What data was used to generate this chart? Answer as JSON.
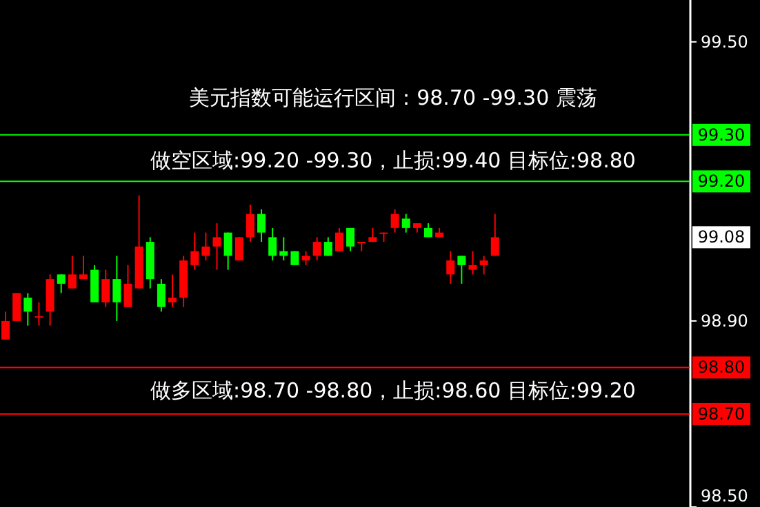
{
  "chart_data": {
    "type": "candlestick",
    "title": "美元指数可能运行区间：98.70 -99.30 震荡",
    "categories": [
      null,
      null,
      null,
      null,
      null,
      null,
      null,
      null,
      null,
      null,
      null,
      null,
      null,
      null,
      null,
      null,
      null,
      null,
      null,
      null,
      null,
      null,
      null,
      null,
      null,
      null,
      null,
      null,
      null,
      null,
      null,
      null,
      null,
      null,
      null,
      null,
      null,
      null,
      null,
      null,
      null,
      null,
      null,
      null,
      null,
      null,
      null,
      null,
      null,
      null,
      null,
      null,
      null,
      null,
      null,
      null,
      null,
      null,
      null,
      null,
      null,
      null
    ],
    "ohlc": [
      [
        98.86,
        98.92,
        98.86,
        98.9
      ],
      [
        98.9,
        98.96,
        98.9,
        98.96
      ],
      [
        98.95,
        98.96,
        98.89,
        98.92
      ],
      [
        98.91,
        98.94,
        98.89,
        98.91
      ],
      [
        98.92,
        99.0,
        98.89,
        98.99
      ],
      [
        99.0,
        99.0,
        98.96,
        98.98
      ],
      [
        98.97,
        99.04,
        98.97,
        99.0
      ],
      [
        98.99,
        99.04,
        98.99,
        99.0
      ],
      [
        99.01,
        99.02,
        98.94,
        98.94
      ],
      [
        98.94,
        99.01,
        98.93,
        98.99
      ],
      [
        98.99,
        99.04,
        98.9,
        98.94
      ],
      [
        98.93,
        99.02,
        98.93,
        98.98
      ],
      [
        98.97,
        99.17,
        98.97,
        99.06
      ],
      [
        99.07,
        99.08,
        98.97,
        98.99
      ],
      [
        98.98,
        98.99,
        98.92,
        98.93
      ],
      [
        98.94,
        99.0,
        98.93,
        98.95
      ],
      [
        98.95,
        99.04,
        98.93,
        99.03
      ],
      [
        99.02,
        99.09,
        99.01,
        99.05
      ],
      [
        99.04,
        99.09,
        99.03,
        99.06
      ],
      [
        99.06,
        99.11,
        99.01,
        99.08
      ],
      [
        99.09,
        99.09,
        99.01,
        99.04
      ],
      [
        99.03,
        99.08,
        99.03,
        99.08
      ],
      [
        99.08,
        99.15,
        99.07,
        99.13
      ],
      [
        99.13,
        99.14,
        99.07,
        99.09
      ],
      [
        99.08,
        99.1,
        99.03,
        99.04
      ],
      [
        99.05,
        99.08,
        99.03,
        99.04
      ],
      [
        99.05,
        99.05,
        99.02,
        99.02
      ],
      [
        99.03,
        99.05,
        99.02,
        99.04
      ],
      [
        99.04,
        99.08,
        99.03,
        99.07
      ],
      [
        99.07,
        99.08,
        99.04,
        99.04
      ],
      [
        99.05,
        99.1,
        99.05,
        99.09
      ],
      [
        99.1,
        99.1,
        99.05,
        99.06
      ],
      [
        99.07,
        99.07,
        99.05,
        99.07
      ],
      [
        99.07,
        99.1,
        99.07,
        99.08
      ],
      [
        99.09,
        99.09,
        99.07,
        99.09
      ],
      [
        99.1,
        99.14,
        99.09,
        99.13
      ],
      [
        99.12,
        99.13,
        99.09,
        99.1
      ],
      [
        99.1,
        99.11,
        99.09,
        99.11
      ],
      [
        99.1,
        99.11,
        99.08,
        99.08
      ],
      [
        99.08,
        99.1,
        99.08,
        99.09
      ],
      [
        99.0,
        99.05,
        98.98,
        99.03
      ],
      [
        99.04,
        99.04,
        98.98,
        99.02
      ],
      [
        99.01,
        99.05,
        99.0,
        99.02
      ],
      [
        99.02,
        99.04,
        99.0,
        99.03
      ],
      [
        99.04,
        99.13,
        99.04,
        99.08
      ],
      null,
      null,
      null,
      null,
      null,
      null,
      null,
      null,
      null,
      null,
      null,
      null,
      null,
      null,
      null,
      null,
      null
    ],
    "ylim": [
      98.5,
      99.59
    ],
    "yticks": [
      {
        "value": 98.5,
        "label": "98.50"
      },
      {
        "value": 98.9,
        "label": "98.90"
      },
      {
        "value": 99.5,
        "label": "99.50"
      }
    ],
    "ref_lines": [
      {
        "axis": "y",
        "value": 99.3,
        "label": "99.30",
        "color": "#00ff00"
      },
      {
        "axis": "y",
        "value": 99.2,
        "label": "99.20",
        "color": "#00ff00"
      },
      {
        "axis": "y",
        "value": 98.8,
        "label": "98.80",
        "color": "#ff0000"
      },
      {
        "axis": "y",
        "value": 98.7,
        "label": "98.70",
        "color": "#ff0000"
      }
    ],
    "annotations": [
      "做空区域:99.20 -99.30，止损:99.40 目标位:98.80",
      "做多区域:98.70 -98.80，止损:98.60 目标位:99.20",
      {
        "text": "99.08",
        "y": 99.08
      }
    ],
    "grid": false
  }
}
